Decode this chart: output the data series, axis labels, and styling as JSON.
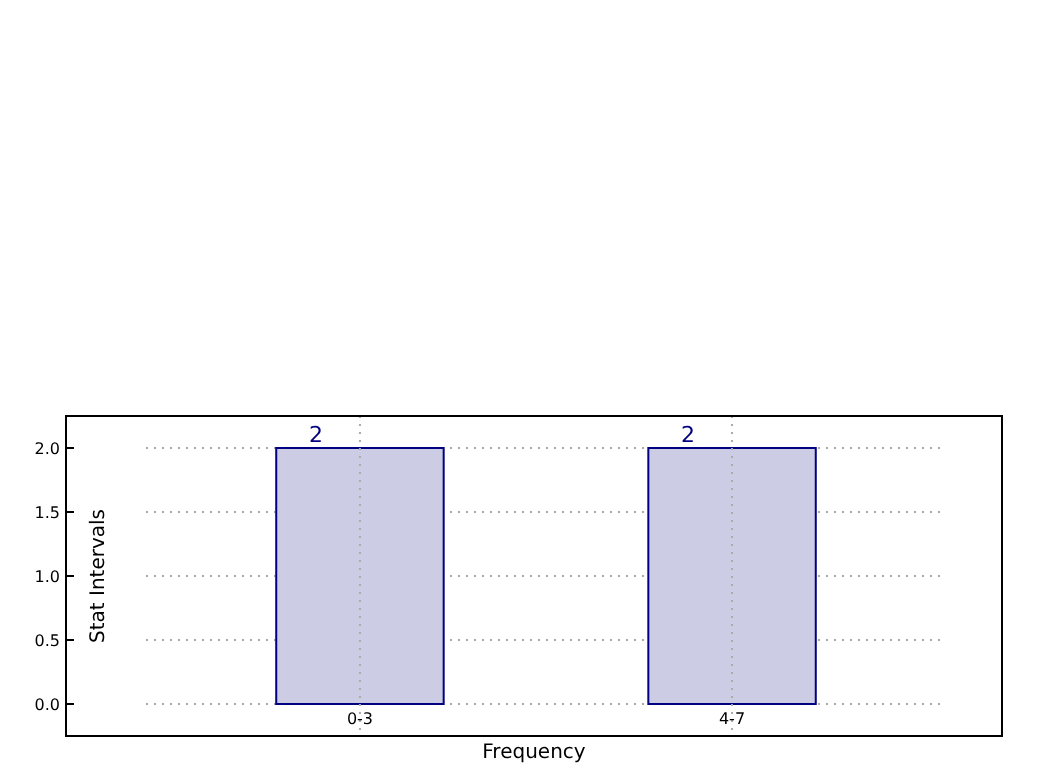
{
  "chart_data": {
    "type": "bar",
    "xlabel": "Frequency",
    "ylabel": "Stat Intervals",
    "categories": [
      "0-3",
      "4-7"
    ],
    "values": [
      2,
      2
    ],
    "color": "#cccce5",
    "ylim": [
      -0.25,
      2.25
    ],
    "yticks": [
      {
        "value": 0,
        "label": "0.0"
      },
      {
        "value": 0.5,
        "label": "0.5"
      },
      {
        "value": 1,
        "label": "1.0"
      },
      {
        "value": 1.5,
        "label": "1.5"
      },
      {
        "value": 2,
        "label": "2.0"
      }
    ],
    "grid": true,
    "data_labels": true
  }
}
